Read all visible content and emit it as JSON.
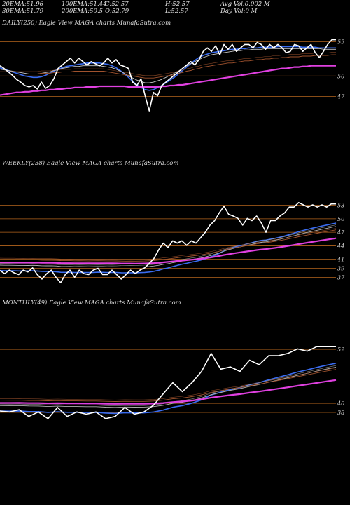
{
  "header": {
    "row1": [
      {
        "label": "20EMA:",
        "value": "51.96"
      },
      {
        "label": "100EMA:",
        "value": "51.44"
      },
      {
        "label": "C:",
        "value": "52.57"
      },
      {
        "label": "H:",
        "value": "52.57"
      },
      {
        "label": "Avg Vol:",
        "value": "0.002  M"
      }
    ],
    "row2": [
      {
        "label": "30EMA:",
        "value": "51.79"
      },
      {
        "label": "200EMA:",
        "value": "50.5"
      },
      {
        "label": "O:",
        "value": "52.79"
      },
      {
        "label": "L:",
        "value": "52.57"
      },
      {
        "label": "Day Vol:",
        "value": "0  M"
      }
    ]
  },
  "panels": [
    {
      "title": "DAILY(250) Eagle  View  MAGA charts MunafaSutra.com"
    },
    {
      "title": "WEEKLY(238) Eagle  View  MAGA charts MunafaSutra.com"
    },
    {
      "title": "MONTHLY(49) Eagle  View  MAGA charts MunafaSutra.com"
    }
  ],
  "colors": {
    "background": "#000000",
    "price": "#ffffff",
    "ema_fast": "#3a6cf0",
    "ema_slow": "#e040e0",
    "ema_mid": "#b0b0b0",
    "ema_brown": "#a0522d",
    "level_line": "#b5651d"
  },
  "chart_data": [
    {
      "type": "line",
      "title": "DAILY(250) Eagle  View  MAGA charts MunafaSutra.com",
      "ylim": [
        44.5,
        57
      ],
      "ticks": [
        {
          "value": 55,
          "label": "55"
        },
        {
          "value": 50,
          "label": "50"
        },
        {
          "value": 47,
          "label": "47"
        }
      ],
      "price": [
        51.5,
        51.1,
        50.6,
        50.1,
        49.5,
        49.1,
        48.6,
        48.4,
        48.6,
        48.1,
        49.1,
        48.2,
        48.6,
        49.6,
        51.1,
        51.6,
        52.1,
        52.6,
        51.9,
        52.6,
        52.1,
        51.6,
        52.1,
        51.8,
        51.5,
        51.9,
        52.6,
        51.9,
        52.4,
        51.6,
        51.4,
        51.1,
        49.1,
        48.6,
        49.6,
        47.1,
        44.9,
        47.6,
        47.1,
        48.6,
        49.1,
        49.6,
        50.1,
        50.6,
        51.1,
        51.6,
        52.1,
        51.6,
        52.4,
        53.6,
        54.1,
        53.6,
        54.4,
        53.1,
        54.6,
        53.9,
        54.6,
        53.6,
        54.1,
        54.6,
        54.6,
        54.1,
        54.9,
        54.6,
        53.9,
        54.6,
        54.1,
        54.6,
        54.1,
        53.4,
        53.6,
        54.6,
        54.4,
        53.6,
        54.1,
        54.6,
        53.4,
        52.7,
        53.6,
        54.6,
        55.3,
        55.3
      ],
      "series": [
        {
          "name": "20EMA",
          "color": "#3a6cf0",
          "values": [
            51.2,
            51.0,
            50.8,
            50.6,
            50.4,
            50.2,
            50.0,
            49.9,
            49.8,
            49.8,
            49.9,
            50.1,
            50.4,
            50.7,
            51.0,
            51.2,
            51.4,
            51.5,
            51.6,
            51.7,
            51.8,
            51.9,
            51.9,
            51.9,
            51.9,
            51.8,
            51.7,
            51.5,
            51.2,
            50.8,
            50.3,
            49.8,
            49.2,
            48.7,
            48.3,
            48.0,
            47.9,
            48.0,
            48.3,
            48.6,
            49.0,
            49.4,
            49.8,
            50.3,
            50.8,
            51.3,
            51.8,
            52.3,
            52.7,
            53.0,
            53.2,
            53.4,
            53.5,
            53.6,
            53.7,
            53.8,
            53.9,
            53.9,
            54.0,
            54.0,
            54.1,
            54.1,
            54.1,
            54.2,
            54.2,
            54.2,
            54.2,
            54.3,
            54.3,
            54.3,
            54.3,
            54.3,
            54.3,
            54.2,
            54.2,
            54.2,
            54.2,
            54.1,
            54.1,
            54.1,
            54.1,
            54.1
          ]
        },
        {
          "name": "30EMA",
          "color": "#c8c8c8",
          "values": [
            51.0,
            50.9,
            50.8,
            50.7,
            50.6,
            50.5,
            50.4,
            50.3,
            50.3,
            50.3,
            50.4,
            50.5,
            50.6,
            50.8,
            50.9,
            51.1,
            51.2,
            51.3,
            51.4,
            51.4,
            51.5,
            51.5,
            51.5,
            51.5,
            51.5,
            51.4,
            51.3,
            51.2,
            51.0,
            50.7,
            50.4,
            50.0,
            49.7,
            49.4,
            49.2,
            49.0,
            49.0,
            49.1,
            49.3,
            49.5,
            49.8,
            50.1,
            50.4,
            50.7,
            51.1,
            51.5,
            51.8,
            52.1,
            52.4,
            52.7,
            52.9,
            53.1,
            53.2,
            53.3,
            53.4,
            53.5,
            53.6,
            53.7,
            53.7,
            53.8,
            53.8,
            53.9,
            53.9,
            53.9,
            54.0,
            54.0,
            54.0,
            54.0,
            54.0,
            54.0,
            54.0,
            54.0,
            54.0,
            54.0,
            54.0,
            54.0,
            54.0,
            54.0,
            53.9,
            53.9,
            53.9,
            53.9
          ]
        },
        {
          "name": "100EMA",
          "color": "#a0522d",
          "values": [
            50.3,
            50.3,
            50.3,
            50.3,
            50.3,
            50.3,
            50.3,
            50.3,
            50.3,
            50.3,
            50.4,
            50.4,
            50.4,
            50.5,
            50.5,
            50.6,
            50.6,
            50.6,
            50.7,
            50.7,
            50.7,
            50.7,
            50.7,
            50.7,
            50.7,
            50.7,
            50.6,
            50.5,
            50.4,
            50.3,
            50.2,
            50.1,
            50.0,
            49.9,
            49.8,
            49.7,
            49.7,
            49.7,
            49.8,
            49.9,
            50.0,
            50.1,
            50.2,
            50.4,
            50.5,
            50.7,
            50.8,
            51.0,
            51.1,
            51.3,
            51.4,
            51.5,
            51.6,
            51.7,
            51.8,
            51.9,
            51.9,
            52.0,
            52.1,
            52.2,
            52.2,
            52.3,
            52.4,
            52.4,
            52.5,
            52.5,
            52.6,
            52.6,
            52.7,
            52.7,
            52.8,
            52.8,
            52.8,
            52.9,
            52.9,
            52.9,
            53.0,
            53.0,
            53.0,
            53.0,
            53.1,
            53.1
          ]
        },
        {
          "name": "200EMA",
          "color": "#e040e0",
          "values": [
            47.2,
            47.3,
            47.4,
            47.5,
            47.6,
            47.6,
            47.7,
            47.7,
            47.8,
            47.8,
            47.9,
            47.9,
            48.0,
            48.0,
            48.1,
            48.1,
            48.2,
            48.2,
            48.3,
            48.3,
            48.3,
            48.4,
            48.4,
            48.4,
            48.5,
            48.5,
            48.5,
            48.5,
            48.5,
            48.5,
            48.5,
            48.4,
            48.4,
            48.4,
            48.4,
            48.4,
            48.4,
            48.4,
            48.4,
            48.5,
            48.5,
            48.6,
            48.6,
            48.7,
            48.7,
            48.8,
            48.9,
            49.0,
            49.1,
            49.2,
            49.3,
            49.4,
            49.5,
            49.6,
            49.7,
            49.8,
            49.9,
            50.0,
            50.1,
            50.2,
            50.3,
            50.4,
            50.5,
            50.6,
            50.7,
            50.8,
            50.9,
            51.0,
            51.1,
            51.1,
            51.2,
            51.3,
            51.3,
            51.4,
            51.4,
            51.5,
            51.5,
            51.5,
            51.5,
            51.5,
            51.5,
            51.5
          ]
        }
      ]
    },
    {
      "type": "line",
      "title": "WEEKLY(238) Eagle  View  MAGA charts MunafaSutra.com",
      "ylim": [
        35.5,
        54.5
      ],
      "ticks": [
        {
          "value": 53,
          "label": "53"
        },
        {
          "value": 50,
          "label": "50"
        },
        {
          "value": 47,
          "label": "47"
        },
        {
          "value": 44,
          "label": "44"
        },
        {
          "value": 41,
          "label": "41"
        },
        {
          "value": 39,
          "label": "39"
        },
        {
          "value": 37,
          "label": "37"
        }
      ],
      "price": [
        38.5,
        37.8,
        38.6,
        38.0,
        37.6,
        38.6,
        38.2,
        39.1,
        37.6,
        36.6,
        37.8,
        38.6,
        37.0,
        35.8,
        37.6,
        38.6,
        37.0,
        38.6,
        37.8,
        37.6,
        38.6,
        39.0,
        37.6,
        37.6,
        38.6,
        37.6,
        36.6,
        37.6,
        38.6,
        37.8,
        38.6,
        39.1,
        40.1,
        41.2,
        43.1,
        44.6,
        43.6,
        45.1,
        44.6,
        45.1,
        44.1,
        45.1,
        44.6,
        45.8,
        47.0,
        48.6,
        49.6,
        51.3,
        52.8,
        51.0,
        50.6,
        50.1,
        48.6,
        50.1,
        49.6,
        50.6,
        49.1,
        47.0,
        49.6,
        49.6,
        50.6,
        51.3,
        52.6,
        52.6,
        53.6,
        53.1,
        52.6,
        53.1,
        52.6,
        53.1,
        52.6,
        53.3,
        53.3
      ]
    },
    {
      "type": "line",
      "title": "MONTHLY(49) Eagle  View  MAGA charts MunafaSutra.com",
      "ylim": [
        35.5,
        54.5
      ],
      "ticks": [
        {
          "value": 52,
          "label": "52"
        },
        {
          "value": 40,
          "label": "40"
        },
        {
          "value": 38,
          "label": "38"
        }
      ],
      "price": [
        38.3,
        38.1,
        38.6,
        37.1,
        38.1,
        36.6,
        39.1,
        37.1,
        38.1,
        37.6,
        38.1,
        36.6,
        37.1,
        39.1,
        37.6,
        38.1,
        39.6,
        42.1,
        44.6,
        42.6,
        44.6,
        47.1,
        51.1,
        47.6,
        48.1,
        47.1,
        49.6,
        48.6,
        50.6,
        50.6,
        51.1,
        52.1,
        51.6,
        52.6,
        52.6,
        52.6
      ]
    }
  ]
}
